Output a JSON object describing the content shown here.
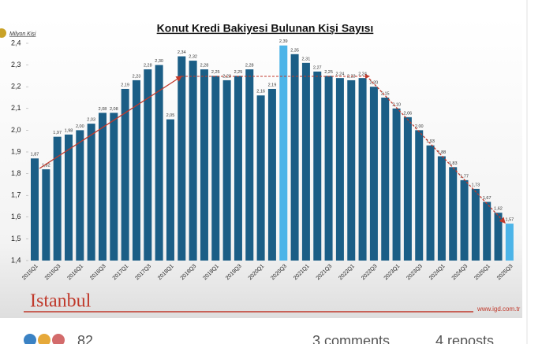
{
  "chart_data": {
    "type": "bar",
    "title": "Konut Kredi Bakiyesi Bulunan Kişi Sayısı",
    "y_unit": "Milyon Kişi",
    "categories": [
      "2015Q1",
      null,
      "2015Q3",
      null,
      "2016Q1",
      null,
      "2016Q3",
      null,
      "2017Q1",
      null,
      "2017Q3",
      null,
      "2018Q1",
      null,
      "2018Q3",
      null,
      "2019Q1",
      null,
      "2019Q3",
      null,
      "2020Q1",
      null,
      "2020Q3",
      null,
      "2021Q1",
      null,
      "2021Q3",
      null,
      "2022Q1",
      null,
      "2022Q3",
      null,
      "2023Q1",
      null,
      "2023Q3",
      null,
      "2024Q1",
      null,
      "2024Q3",
      null,
      "2025Q1",
      null,
      "2025Q3"
    ],
    "values": [
      1.87,
      1.82,
      1.97,
      1.98,
      2.0,
      2.03,
      2.08,
      2.08,
      2.19,
      2.23,
      2.28,
      2.3,
      2.05,
      2.34,
      2.32,
      2.28,
      2.25,
      2.23,
      2.25,
      2.28,
      2.16,
      2.19,
      2.39,
      2.35,
      2.31,
      2.27,
      2.25,
      2.24,
      2.23,
      2.24,
      2.2,
      2.15,
      2.1,
      2.06,
      2.0,
      1.93,
      1.88,
      1.83,
      1.77,
      1.73,
      1.67,
      1.62,
      1.57
    ],
    "value_labels": [
      "1,87",
      "1,82",
      "1,97",
      "1,98",
      "2,00",
      "2,03",
      "2,08",
      "2,08",
      "2,19",
      "2,23",
      "2,28",
      "2,30",
      "2,05",
      "2,34",
      "2,32",
      "2,28",
      "2,25",
      "2,23",
      "2,25",
      "2,28",
      "2,16",
      "2,19",
      "2,39",
      "2,35",
      "2,31",
      "2,27",
      "2,25",
      "2,24",
      "2,23",
      "2,24",
      "2,20",
      "2,15",
      "2,10",
      "2,06",
      "2,00",
      "1,93",
      "1,88",
      "1,83",
      "1,77",
      "1,73",
      "1,67",
      "1,62",
      "1,57"
    ],
    "colors": [
      "#1b5e86",
      "#1b5e86",
      "#1b5e86",
      "#1b5e86",
      "#1b5e86",
      "#1b5e86",
      "#1b5e86",
      "#1b5e86",
      "#1b5e86",
      "#1b5e86",
      "#1b5e86",
      "#1b5e86",
      "#1b5e86",
      "#1b5e86",
      "#1b5e86",
      "#1b5e86",
      "#1b5e86",
      "#1b5e86",
      "#1b5e86",
      "#1b5e86",
      "#1b5e86",
      "#1b5e86",
      "#4cb4e8",
      "#1b5e86",
      "#1b5e86",
      "#1b5e86",
      "#1b5e86",
      "#1b5e86",
      "#1b5e86",
      "#1b5e86",
      "#1b5e86",
      "#1b5e86",
      "#1b5e86",
      "#1b5e86",
      "#1b5e86",
      "#1b5e86",
      "#1b5e86",
      "#1b5e86",
      "#1b5e86",
      "#1b5e86",
      "#1b5e86",
      "#1b5e86",
      "#4cb4e8"
    ],
    "ylim": [
      1.4,
      2.4
    ],
    "yticks": [
      {
        "value": 1.4,
        "label": "1,4"
      },
      {
        "value": 1.5,
        "label": "1,5"
      },
      {
        "value": 1.6,
        "label": "1,6"
      },
      {
        "value": 1.7,
        "label": "1,7"
      },
      {
        "value": 1.8,
        "label": "1,8"
      },
      {
        "value": 1.9,
        "label": "1,9"
      },
      {
        "value": 2.0,
        "label": "2,0"
      },
      {
        "value": 2.1,
        "label": "2,1"
      },
      {
        "value": 2.2,
        "label": "2,2"
      },
      {
        "value": 2.3,
        "label": "2,3"
      },
      {
        "value": 2.4,
        "label": "2,4"
      }
    ],
    "grid": false
  },
  "logo": "Istanbul",
  "source": "www.igd.com.tr",
  "post": {
    "reactions": "82",
    "comments": "3 comments",
    "reposts": "4 reposts"
  }
}
